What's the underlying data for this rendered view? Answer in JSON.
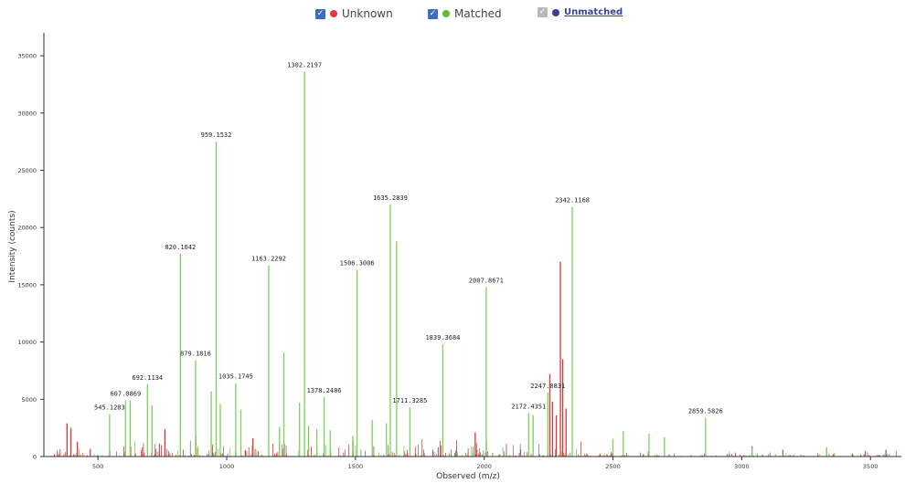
{
  "legend": {
    "unknown": {
      "label": "Unknown",
      "checkbox_color": "#3d6cc0",
      "dot_color": "#e03a3a"
    },
    "matched": {
      "label": "Matched",
      "checkbox_color": "#3d6cc0",
      "dot_color": "#5bbf3a"
    },
    "unmatched": {
      "label": "Unmatched",
      "checkbox_color": "#b9b9b9",
      "dot_color": "#3a3f9a"
    }
  },
  "chart_data": {
    "type": "bar",
    "xlabel": "Observed (m/z)",
    "ylabel": "Intensity (counts)",
    "xlim": [
      290,
      3620
    ],
    "ylim": [
      0,
      37000
    ],
    "x_ticks": [
      500,
      1000,
      1500,
      2000,
      2500,
      3000,
      3500
    ],
    "y_ticks": [
      0,
      5000,
      10000,
      15000,
      20000,
      25000,
      30000,
      35000
    ],
    "colors": {
      "matched": "#7bd15a",
      "unknown": "#d63838",
      "unmatched": "#7a7a7a"
    },
    "matched_peaks": [
      {
        "mz": 545.1283,
        "intensity": 3700,
        "label": "545.1283"
      },
      {
        "mz": 607.0869,
        "intensity": 4900,
        "label": "607.0869"
      },
      {
        "mz": 625.0,
        "intensity": 4900
      },
      {
        "mz": 692.1134,
        "intensity": 6300,
        "label": "692.1134"
      },
      {
        "mz": 710.0,
        "intensity": 4500
      },
      {
        "mz": 820.1642,
        "intensity": 17700,
        "label": "820.1642"
      },
      {
        "mz": 879.1816,
        "intensity": 8400,
        "label": "879.1816"
      },
      {
        "mz": 940.0,
        "intensity": 5700
      },
      {
        "mz": 959.1532,
        "intensity": 27500,
        "label": "959.1532"
      },
      {
        "mz": 975.0,
        "intensity": 4600
      },
      {
        "mz": 1035.1745,
        "intensity": 6400,
        "label": "1035.1745"
      },
      {
        "mz": 1055.0,
        "intensity": 4100
      },
      {
        "mz": 1163.2292,
        "intensity": 16700,
        "label": "1163.2292"
      },
      {
        "mz": 1205.0,
        "intensity": 2600
      },
      {
        "mz": 1222.0,
        "intensity": 9100
      },
      {
        "mz": 1283.0,
        "intensity": 4700
      },
      {
        "mz": 1302.2197,
        "intensity": 33600,
        "label": "1302.2197"
      },
      {
        "mz": 1318.0,
        "intensity": 2700
      },
      {
        "mz": 1350.0,
        "intensity": 2400
      },
      {
        "mz": 1378.2486,
        "intensity": 5200,
        "label": "1378.2486"
      },
      {
        "mz": 1402.0,
        "intensity": 2300
      },
      {
        "mz": 1490.0,
        "intensity": 1800
      },
      {
        "mz": 1506.3006,
        "intensity": 16300,
        "label": "1506.3006"
      },
      {
        "mz": 1565.0,
        "intensity": 3200
      },
      {
        "mz": 1620.0,
        "intensity": 2900
      },
      {
        "mz": 1635.2839,
        "intensity": 22000,
        "label": "1635.2839"
      },
      {
        "mz": 1660.0,
        "intensity": 18800
      },
      {
        "mz": 1711.3285,
        "intensity": 4300,
        "label": "1711.3285"
      },
      {
        "mz": 1839.3684,
        "intensity": 9800,
        "label": "1839.3684"
      },
      {
        "mz": 2007.8671,
        "intensity": 14800,
        "label": "2007.8671"
      },
      {
        "mz": 2172.4351,
        "intensity": 3800,
        "label": "2172.4351"
      },
      {
        "mz": 2190.0,
        "intensity": 3600
      },
      {
        "mz": 2247.0831,
        "intensity": 5600,
        "label": "2247.0831"
      },
      {
        "mz": 2342.1168,
        "intensity": 21800,
        "label": "2342.1168"
      },
      {
        "mz": 2500.0,
        "intensity": 1500
      },
      {
        "mz": 2540.0,
        "intensity": 2200
      },
      {
        "mz": 2640.0,
        "intensity": 2000
      },
      {
        "mz": 2700.0,
        "intensity": 1700
      },
      {
        "mz": 2859.5826,
        "intensity": 3400,
        "label": "2859.5826"
      },
      {
        "mz": 3040.0,
        "intensity": 700
      },
      {
        "mz": 3330.0,
        "intensity": 800
      },
      {
        "mz": 3600.0,
        "intensity": 500
      }
    ],
    "unknown_peaks": [
      {
        "mz": 380,
        "intensity": 2900
      },
      {
        "mz": 395,
        "intensity": 2500
      },
      {
        "mz": 420,
        "intensity": 1300
      },
      {
        "mz": 760,
        "intensity": 2400
      },
      {
        "mz": 880,
        "intensity": 1800
      },
      {
        "mz": 1102,
        "intensity": 1600
      },
      {
        "mz": 1490,
        "intensity": 1400
      },
      {
        "mz": 1965,
        "intensity": 2100
      },
      {
        "mz": 2255,
        "intensity": 7200
      },
      {
        "mz": 2265,
        "intensity": 4800
      },
      {
        "mz": 2280,
        "intensity": 3600
      },
      {
        "mz": 2296,
        "intensity": 17000
      },
      {
        "mz": 2305,
        "intensity": 8500
      },
      {
        "mz": 2318,
        "intensity": 4200
      }
    ],
    "unmatched_peaks": [
      {
        "mz": 3040,
        "intensity": 900
      },
      {
        "mz": 3160,
        "intensity": 600
      },
      {
        "mz": 3330,
        "intensity": 700
      },
      {
        "mz": 3480,
        "intensity": 500
      },
      {
        "mz": 3560,
        "intensity": 600
      }
    ]
  }
}
